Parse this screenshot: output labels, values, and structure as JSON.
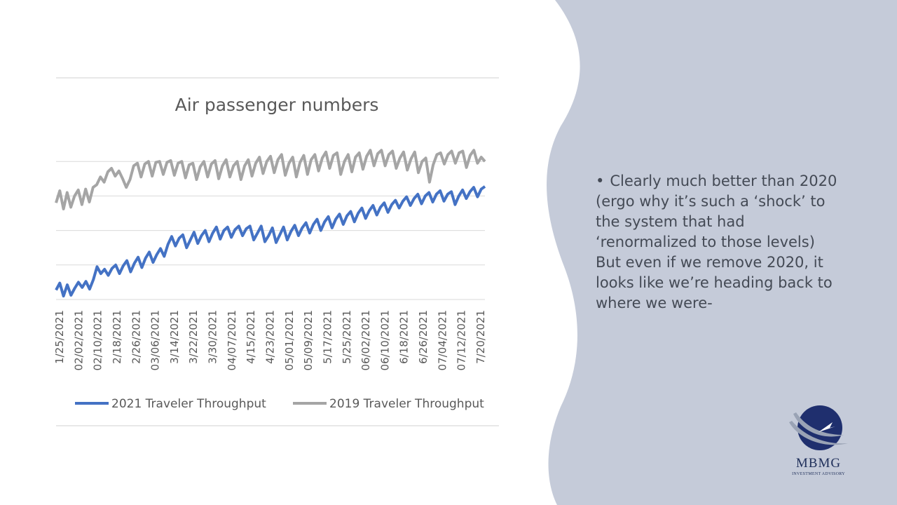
{
  "slide": {
    "bullet_symbol": "•",
    "bullet_text": "Clearly much better than 2020 (ergo why it’s such a ‘shock’ to the system that had ‘renormalized to those levels) But even if we remove 2020, it looks like we’re heading back to where we were-",
    "panel_color": "#c5cbd9",
    "logo": {
      "name": "MBMG",
      "subtitle": "INVESTMENT ADVISORY",
      "colors": [
        "#1f2f6e",
        "#9aa3b5"
      ]
    }
  },
  "chart_data": {
    "type": "line",
    "title": "Air passenger numbers",
    "xlabel": "",
    "ylabel": "",
    "grid": true,
    "legend_position": "bottom",
    "tick_labels": [
      "1/25/2021",
      "02/02/2021",
      "02/10/2021",
      "2/18/2021",
      "2/26/2021",
      "03/06/2021",
      "3/14/2021",
      "3/22/2021",
      "3/30/2021",
      "04/07/2021",
      "4/15/2021",
      "4/23/2021",
      "05/01/2021",
      "05/09/2021",
      "5/17/2021",
      "5/25/2021",
      "06/02/2021",
      "06/10/2021",
      "6/18/2021",
      "6/26/2021",
      "07/04/2021",
      "07/12/2021",
      "7/20/2021"
    ],
    "series": [
      {
        "name": "2021 Traveler Throughput",
        "color": "#4472c4",
        "values": [
          0.61,
          0.69,
          0.54,
          0.67,
          0.55,
          0.63,
          0.7,
          0.64,
          0.71,
          0.62,
          0.73,
          0.88,
          0.8,
          0.85,
          0.78,
          0.86,
          0.9,
          0.8,
          0.89,
          0.95,
          0.82,
          0.92,
          0.99,
          0.87,
          0.98,
          1.05,
          0.93,
          1.02,
          1.09,
          1.0,
          1.14,
          1.23,
          1.12,
          1.21,
          1.25,
          1.1,
          1.19,
          1.28,
          1.15,
          1.24,
          1.3,
          1.17,
          1.27,
          1.34,
          1.2,
          1.3,
          1.34,
          1.22,
          1.31,
          1.35,
          1.24,
          1.32,
          1.35,
          1.19,
          1.27,
          1.35,
          1.17,
          1.24,
          1.33,
          1.16,
          1.25,
          1.34,
          1.19,
          1.29,
          1.36,
          1.24,
          1.33,
          1.39,
          1.27,
          1.37,
          1.43,
          1.3,
          1.4,
          1.46,
          1.33,
          1.43,
          1.49,
          1.37,
          1.47,
          1.52,
          1.4,
          1.5,
          1.56,
          1.44,
          1.53,
          1.59,
          1.48,
          1.57,
          1.62,
          1.51,
          1.6,
          1.65,
          1.56,
          1.64,
          1.69,
          1.59,
          1.67,
          1.72,
          1.61,
          1.7,
          1.74,
          1.63,
          1.72,
          1.76,
          1.64,
          1.72,
          1.75,
          1.6,
          1.7,
          1.77,
          1.67,
          1.75,
          1.8,
          1.69,
          1.78,
          1.81
        ],
        "y_scale": "relative (axis has no printed values)"
      },
      {
        "name": "2019 Traveler Throughput",
        "color": "#a5a5a5",
        "values": [
          1.62,
          1.76,
          1.55,
          1.74,
          1.57,
          1.7,
          1.77,
          1.6,
          1.78,
          1.63,
          1.8,
          1.83,
          1.92,
          1.86,
          1.98,
          2.02,
          1.93,
          1.99,
          1.9,
          1.8,
          1.89,
          2.05,
          2.08,
          1.92,
          2.07,
          2.1,
          1.93,
          2.09,
          2.1,
          1.95,
          2.09,
          2.11,
          1.94,
          2.08,
          2.1,
          1.91,
          2.06,
          2.08,
          1.89,
          2.04,
          2.1,
          1.92,
          2.07,
          2.11,
          1.9,
          2.05,
          2.12,
          1.92,
          2.05,
          2.1,
          1.89,
          2.05,
          2.12,
          1.93,
          2.08,
          2.15,
          1.96,
          2.1,
          2.16,
          1.97,
          2.12,
          2.18,
          1.94,
          2.08,
          2.15,
          1.92,
          2.09,
          2.17,
          1.95,
          2.12,
          2.18,
          1.99,
          2.14,
          2.21,
          2.02,
          2.17,
          2.2,
          1.95,
          2.1,
          2.18,
          1.98,
          2.15,
          2.2,
          2.01,
          2.16,
          2.23,
          2.05,
          2.19,
          2.23,
          2.05,
          2.18,
          2.22,
          2.02,
          2.14,
          2.21,
          2.0,
          2.13,
          2.21,
          1.97,
          2.1,
          2.14,
          1.86,
          2.06,
          2.18,
          2.2,
          2.07,
          2.18,
          2.22,
          2.08,
          2.2,
          2.22,
          2.03,
          2.17,
          2.23,
          2.08,
          2.15,
          2.1
        ]
      }
    ]
  }
}
